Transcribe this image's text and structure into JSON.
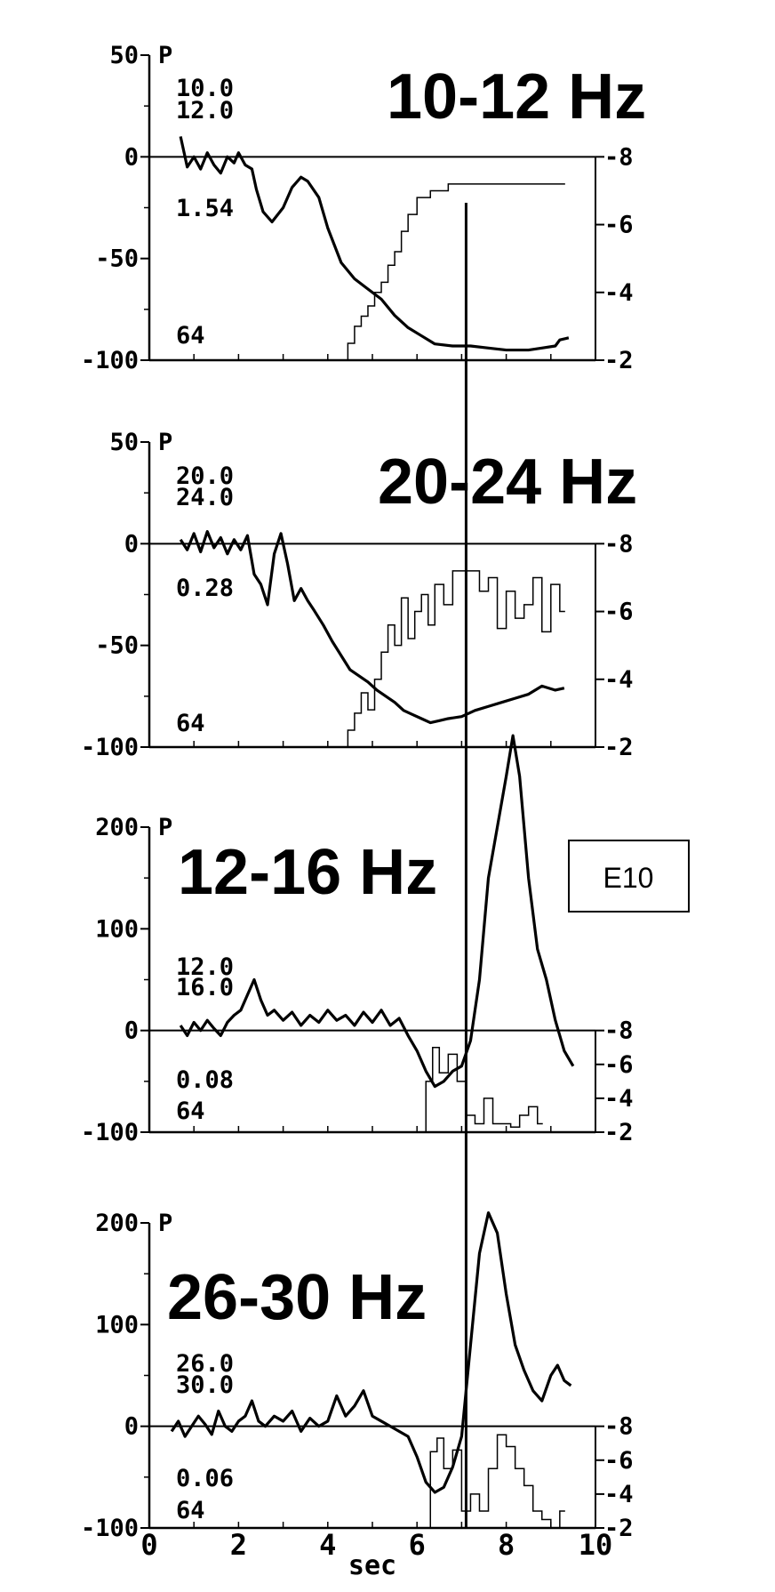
{
  "figure": {
    "x_axis": {
      "label": "sec",
      "ticks": [
        "0",
        "2",
        "4",
        "6",
        "8",
        "10"
      ],
      "range": [
        0,
        10
      ]
    },
    "marker_time": 7.1,
    "box_label": "E10"
  },
  "chart_data": [
    {
      "type": "line",
      "title": "10-12 Hz",
      "corner_label": "P",
      "freq_low": "10.0",
      "freq_high": "12.0",
      "value_label": "1.54",
      "count_label": "64",
      "ylim": [
        -100,
        50
      ],
      "y_ticks": [
        "50",
        "0",
        "-50",
        "-100"
      ],
      "right_ticks": [
        "8",
        "6",
        "4",
        "2"
      ],
      "right_range": [
        2,
        8
      ],
      "series": [
        {
          "name": "phase",
          "x": [
            0.7,
            0.85,
            1.0,
            1.15,
            1.3,
            1.45,
            1.6,
            1.75,
            1.9,
            2.0,
            2.15,
            2.3,
            2.4,
            2.55,
            2.75,
            3.0,
            3.2,
            3.4,
            3.55,
            3.8,
            4.0,
            4.3,
            4.6,
            4.9,
            5.2,
            5.5,
            5.8,
            6.1,
            6.4,
            6.8,
            7.2,
            7.6,
            8.0,
            8.5,
            8.8,
            9.1,
            9.2,
            9.4
          ],
          "y": [
            10,
            -5,
            0,
            -6,
            2,
            -4,
            -8,
            0,
            -3,
            2,
            -4,
            -6,
            -16,
            -27,
            -32,
            -25,
            -15,
            -10,
            -12,
            -20,
            -35,
            -52,
            -60,
            -65,
            -70,
            -78,
            -84,
            -88,
            -92,
            -93,
            -93,
            -94,
            -95,
            -95,
            -94,
            -93,
            -90,
            -89
          ]
        },
        {
          "name": "count",
          "axis": "right",
          "step": true,
          "x": [
            4.45,
            4.6,
            4.75,
            4.9,
            5.05,
            5.2,
            5.35,
            5.5,
            5.65,
            5.8,
            6.0,
            6.3,
            6.7,
            7.5,
            9.2
          ],
          "y": [
            2.5,
            3.0,
            3.3,
            3.6,
            4.0,
            4.3,
            4.8,
            5.2,
            5.8,
            6.3,
            6.8,
            7.0,
            7.2,
            7.2,
            7.2
          ]
        }
      ]
    },
    {
      "type": "line",
      "title": "20-24 Hz",
      "corner_label": "P",
      "freq_low": "20.0",
      "freq_high": "24.0",
      "value_label": "0.28",
      "count_label": "64",
      "ylim": [
        -100,
        50
      ],
      "y_ticks": [
        "50",
        "0",
        "-50",
        "-100"
      ],
      "right_ticks": [
        "8",
        "6",
        "4",
        "2"
      ],
      "right_range": [
        2,
        8
      ],
      "series": [
        {
          "name": "phase",
          "x": [
            0.7,
            0.85,
            1.0,
            1.15,
            1.3,
            1.45,
            1.6,
            1.75,
            1.9,
            2.05,
            2.2,
            2.35,
            2.5,
            2.65,
            2.8,
            2.95,
            3.1,
            3.25,
            3.4,
            3.55,
            3.7,
            3.9,
            4.1,
            4.3,
            4.5,
            4.7,
            4.9,
            5.1,
            5.3,
            5.5,
            5.7,
            5.9,
            6.1,
            6.3,
            6.5,
            6.7,
            7.0,
            7.3,
            7.6,
            7.9,
            8.2,
            8.5,
            8.8,
            9.1,
            9.3
          ],
          "y": [
            2,
            -3,
            5,
            -4,
            6,
            -2,
            3,
            -5,
            2,
            -3,
            4,
            -15,
            -20,
            -30,
            -5,
            5,
            -10,
            -28,
            -22,
            -28,
            -33,
            -40,
            -48,
            -55,
            -62,
            -65,
            -68,
            -72,
            -75,
            -78,
            -82,
            -84,
            -86,
            -88,
            -87,
            -86,
            -85,
            -82,
            -80,
            -78,
            -76,
            -74,
            -70,
            -72,
            -71
          ]
        },
        {
          "name": "count",
          "axis": "right",
          "step": true,
          "x": [
            4.45,
            4.6,
            4.75,
            4.9,
            5.05,
            5.2,
            5.35,
            5.5,
            5.65,
            5.8,
            5.95,
            6.1,
            6.25,
            6.4,
            6.6,
            6.8,
            7.0,
            7.2,
            7.4,
            7.6,
            7.8,
            8.0,
            8.2,
            8.4,
            8.6,
            8.8,
            9.0,
            9.2
          ],
          "y": [
            2.5,
            3.0,
            3.6,
            3.1,
            4.0,
            4.8,
            5.6,
            5.0,
            6.4,
            5.2,
            6.0,
            6.5,
            5.6,
            6.8,
            6.2,
            7.2,
            7.2,
            7.2,
            6.6,
            7.0,
            5.5,
            6.6,
            5.8,
            6.2,
            7.0,
            5.4,
            6.8,
            6.0
          ]
        }
      ]
    },
    {
      "type": "line",
      "title": "12-16 Hz",
      "corner_label": "P",
      "freq_low": "12.0",
      "freq_high": "16.0",
      "value_label": "0.08",
      "count_label": "64",
      "ylim": [
        -100,
        200
      ],
      "y_ticks": [
        "200",
        "100",
        "0",
        "-100"
      ],
      "right_ticks": [
        "8",
        "6",
        "4",
        "2"
      ],
      "right_range": [
        2,
        8
      ],
      "series": [
        {
          "name": "phase",
          "x": [
            0.7,
            0.85,
            1.0,
            1.15,
            1.3,
            1.45,
            1.6,
            1.75,
            1.9,
            2.05,
            2.2,
            2.35,
            2.5,
            2.65,
            2.8,
            3.0,
            3.2,
            3.4,
            3.6,
            3.8,
            4.0,
            4.2,
            4.4,
            4.6,
            4.8,
            5.0,
            5.2,
            5.4,
            5.6,
            5.8,
            6.0,
            6.2,
            6.4,
            6.6,
            6.8,
            7.0,
            7.2,
            7.4,
            7.6,
            7.8,
            8.0,
            8.15,
            8.3,
            8.5,
            8.7,
            8.9,
            9.1,
            9.3,
            9.5
          ],
          "y": [
            5,
            -5,
            8,
            0,
            10,
            2,
            -5,
            8,
            15,
            20,
            35,
            50,
            30,
            15,
            20,
            10,
            18,
            5,
            15,
            8,
            20,
            10,
            15,
            5,
            18,
            8,
            20,
            5,
            12,
            -5,
            -20,
            -40,
            -55,
            -50,
            -40,
            -35,
            -10,
            50,
            150,
            200,
            250,
            290,
            250,
            150,
            80,
            50,
            10,
            -20,
            -35
          ]
        },
        {
          "name": "count",
          "axis": "right",
          "step": true,
          "x": [
            6.2,
            6.35,
            6.5,
            6.7,
            6.9,
            7.1,
            7.3,
            7.5,
            7.7,
            7.9,
            8.1,
            8.3,
            8.5,
            8.7
          ],
          "y": [
            5.0,
            7.0,
            5.5,
            6.6,
            5.0,
            3.0,
            2.5,
            4.0,
            2.5,
            2.5,
            2.3,
            3.0,
            3.5,
            2.5
          ]
        }
      ]
    },
    {
      "type": "line",
      "title": "26-30 Hz",
      "corner_label": "P",
      "freq_low": "26.0",
      "freq_high": "30.0",
      "value_label": "0.06",
      "count_label": "64",
      "ylim": [
        -100,
        200
      ],
      "y_ticks": [
        "200",
        "100",
        "0",
        "-100"
      ],
      "right_ticks": [
        "8",
        "6",
        "4",
        "2"
      ],
      "right_range": [
        2,
        8
      ],
      "series": [
        {
          "name": "phase",
          "x": [
            0.5,
            0.65,
            0.8,
            0.95,
            1.1,
            1.25,
            1.4,
            1.55,
            1.7,
            1.85,
            2.0,
            2.15,
            2.3,
            2.45,
            2.6,
            2.8,
            3.0,
            3.2,
            3.4,
            3.6,
            3.8,
            4.0,
            4.2,
            4.4,
            4.6,
            4.8,
            5.0,
            5.2,
            5.4,
            5.6,
            5.8,
            6.0,
            6.2,
            6.4,
            6.6,
            6.8,
            7.0,
            7.2,
            7.4,
            7.6,
            7.8,
            8.0,
            8.2,
            8.4,
            8.6,
            8.8,
            9.0,
            9.15,
            9.3,
            9.45
          ],
          "y": [
            -5,
            5,
            -10,
            0,
            10,
            2,
            -8,
            15,
            0,
            -5,
            5,
            10,
            25,
            5,
            0,
            10,
            5,
            15,
            -5,
            8,
            0,
            5,
            30,
            10,
            20,
            35,
            10,
            5,
            0,
            -5,
            -10,
            -30,
            -55,
            -65,
            -60,
            -40,
            -10,
            80,
            170,
            210,
            190,
            130,
            80,
            55,
            35,
            25,
            50,
            60,
            45,
            40
          ]
        },
        {
          "name": "count",
          "axis": "right",
          "step": true,
          "x": [
            6.3,
            6.45,
            6.6,
            6.8,
            7.0,
            7.2,
            7.4,
            7.6,
            7.8,
            8.0,
            8.2,
            8.4,
            8.6,
            8.8,
            9.0,
            9.2
          ],
          "y": [
            6.5,
            7.3,
            5.5,
            6.6,
            3.0,
            4.0,
            3.0,
            5.5,
            7.5,
            6.8,
            5.5,
            4.5,
            3.0,
            2.5,
            2.0,
            3.0
          ]
        }
      ]
    }
  ]
}
